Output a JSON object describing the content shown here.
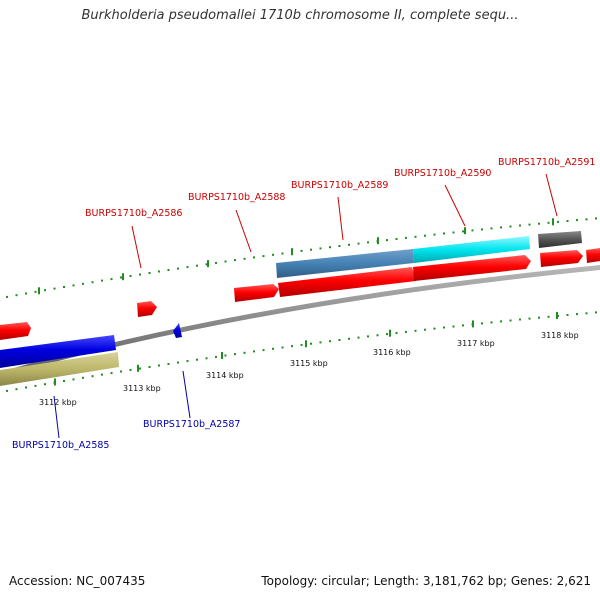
{
  "title": "Burkholderia pseudomallei 1710b chromosome II, complete sequ...",
  "footer": {
    "accession": "Accession: NC_007435",
    "summary": "Topology: circular; Length: 3,181,762 bp; Genes: 2,621"
  },
  "scale": {
    "unit": "kbp",
    "ticks": [
      "3112 kbp",
      "3113 kbp",
      "3114 kbp",
      "3115 kbp",
      "3116 kbp",
      "3117 kbp",
      "3118 kbp"
    ]
  },
  "gene_labels": {
    "forward": [
      "BURPS1710b_A2586",
      "BURPS1710b_A2588",
      "BURPS1710b_A2589",
      "BURPS1710b_A2590",
      "BURPS1710b_A2591"
    ],
    "reverse": [
      "BURPS1710b_A2585",
      "BURPS1710b_A2587"
    ]
  },
  "colors": {
    "forward_gene": "#ff0000",
    "reverse_gene": "#0000dd",
    "backbone": "#888888",
    "tick": "#228b22",
    "steelblue_feature": "#4682b4",
    "cyan_feature": "#00e5ee",
    "olive_feature": "#bdb76b",
    "gray_feature": "#555555"
  }
}
